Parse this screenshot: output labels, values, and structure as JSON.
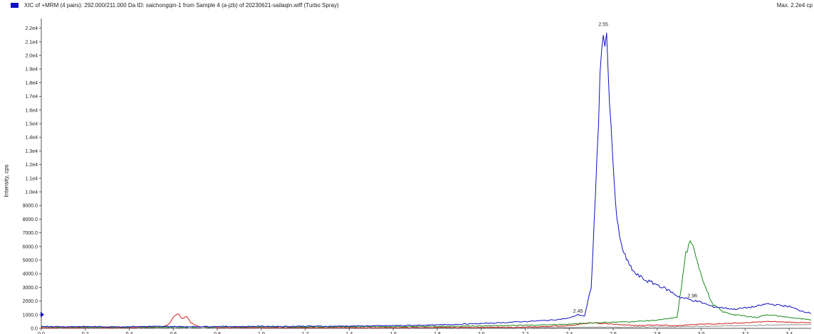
{
  "header": {
    "title": "XIC of +MRM (4 pairs): 292.000/211.000 Da ID: saichongqin-1 from Sample 4 (a-jzb) of 20230621-sailaqin.wiff (Turbo Spray)",
    "max_label": "Max. 2.2e4 cp",
    "legend_color": "#1010c0"
  },
  "chart_data": {
    "type": "line",
    "title": "XIC of +MRM (4 pairs): 292.000/211.000 Da ID: saichongqin-1 from Sample 4 (a-jzb) of 20230621-sailaqin.wiff (Turbo Spray)",
    "xlabel": "",
    "ylabel": "Intensity, cps",
    "xlim": [
      0.0,
      3.5
    ],
    "ylim": [
      0,
      22500
    ],
    "x_ticks": [
      "0.0",
      "0.2",
      "0.4",
      "0.6",
      "0.8",
      "1.0",
      "1.2",
      "1.4",
      "1.6",
      "1.8",
      "2.0",
      "2.2",
      "2.4",
      "2.6",
      "2.8",
      "3.0",
      "3.2",
      "3.4"
    ],
    "y_ticks": [
      "0.0",
      "1000.0",
      "2000.0",
      "3000.0",
      "4000.0",
      "5000.0",
      "6000.0",
      "7000.0",
      "8000.0",
      "9000.0",
      "1.0e4",
      "1.1e4",
      "1.2e4",
      "1.3e4",
      "1.4e4",
      "1.5e4",
      "1.6e4",
      "1.7e4",
      "1.8e4",
      "1.9e4",
      "2.0e4",
      "2.1e4",
      "2.2e4"
    ],
    "y_tick_values": [
      0,
      1000,
      2000,
      3000,
      4000,
      5000,
      6000,
      7000,
      8000,
      9000,
      10000,
      11000,
      12000,
      13000,
      14000,
      15000,
      16000,
      17000,
      18000,
      19000,
      20000,
      21000,
      22000
    ],
    "x_tick_values": [
      0.0,
      0.2,
      0.4,
      0.6,
      0.8,
      1.0,
      1.2,
      1.4,
      1.6,
      1.8,
      2.0,
      2.2,
      2.4,
      2.6,
      2.8,
      3.0,
      3.2,
      3.4
    ],
    "grid": false,
    "series": [
      {
        "color": "#1010c0",
        "x": [
          0.0,
          0.1,
          0.2,
          0.3,
          0.4,
          0.5,
          0.6,
          0.7,
          0.8,
          0.9,
          1.0,
          1.1,
          1.2,
          1.3,
          1.4,
          1.5,
          1.6,
          1.7,
          1.8,
          1.9,
          2.0,
          2.1,
          2.2,
          2.3,
          2.35,
          2.4,
          2.44,
          2.47,
          2.5,
          2.52,
          2.54,
          2.555,
          2.57,
          2.59,
          2.61,
          2.63,
          2.66,
          2.7,
          2.75,
          2.8,
          2.85,
          2.9,
          2.95,
          3.0,
          3.05,
          3.1,
          3.15,
          3.2,
          3.25,
          3.3,
          3.35,
          3.4,
          3.45,
          3.5
        ],
        "y": [
          150,
          120,
          130,
          110,
          120,
          140,
          130,
          120,
          140,
          130,
          150,
          140,
          160,
          150,
          170,
          180,
          200,
          220,
          250,
          300,
          350,
          420,
          500,
          580,
          650,
          750,
          1000,
          900,
          3000,
          10000,
          18000,
          22000,
          21000,
          15000,
          9000,
          6500,
          5000,
          4000,
          3500,
          3200,
          2800,
          2300,
          2100,
          1900,
          1600,
          1500,
          1400,
          1500,
          1600,
          1800,
          1700,
          1600,
          1300,
          1100
        ]
      },
      {
        "color": "#1a8a1a",
        "x": [
          0.0,
          0.2,
          0.4,
          0.6,
          0.8,
          1.0,
          1.2,
          1.4,
          1.6,
          1.8,
          2.0,
          2.2,
          2.4,
          2.5,
          2.6,
          2.7,
          2.8,
          2.85,
          2.89,
          2.91,
          2.93,
          2.95,
          2.97,
          2.99,
          3.02,
          3.05,
          3.1,
          3.15,
          3.2,
          3.25,
          3.3,
          3.35,
          3.4,
          3.45,
          3.5
        ],
        "y": [
          100,
          90,
          100,
          90,
          100,
          110,
          100,
          120,
          130,
          150,
          180,
          220,
          300,
          400,
          450,
          500,
          600,
          700,
          800,
          3000,
          5500,
          6200,
          5800,
          4500,
          3000,
          1800,
          1200,
          1000,
          900,
          800,
          1000,
          900,
          800,
          700,
          600
        ]
      },
      {
        "color": "#d02020",
        "x": [
          0.0,
          0.2,
          0.4,
          0.55,
          0.58,
          0.6,
          0.62,
          0.64,
          0.66,
          0.68,
          0.72,
          0.8,
          1.0,
          1.2,
          1.4,
          1.6,
          1.8,
          2.0,
          2.2,
          2.4,
          2.5,
          2.6,
          2.7,
          2.8,
          2.9,
          3.0,
          3.1,
          3.2,
          3.3,
          3.4,
          3.5
        ],
        "y": [
          50,
          40,
          50,
          100,
          300,
          800,
          1100,
          700,
          900,
          400,
          100,
          50,
          40,
          50,
          40,
          50,
          60,
          70,
          80,
          200,
          400,
          300,
          200,
          250,
          200,
          300,
          350,
          400,
          500,
          450,
          400
        ]
      },
      {
        "color": "#909090",
        "x": [
          0.0,
          0.5,
          1.0,
          1.5,
          2.0,
          2.5,
          2.8,
          3.0,
          3.2,
          3.4,
          3.5
        ],
        "y": [
          30,
          30,
          30,
          40,
          50,
          80,
          100,
          150,
          200,
          250,
          300
        ]
      }
    ],
    "annotations": [
      {
        "text": "2.55",
        "x": 2.555,
        "y": 22000
      },
      {
        "text": "2.45",
        "x": 2.44,
        "y": 1000
      },
      {
        "text": "2.96",
        "x": 2.96,
        "y": 2100
      }
    ]
  }
}
